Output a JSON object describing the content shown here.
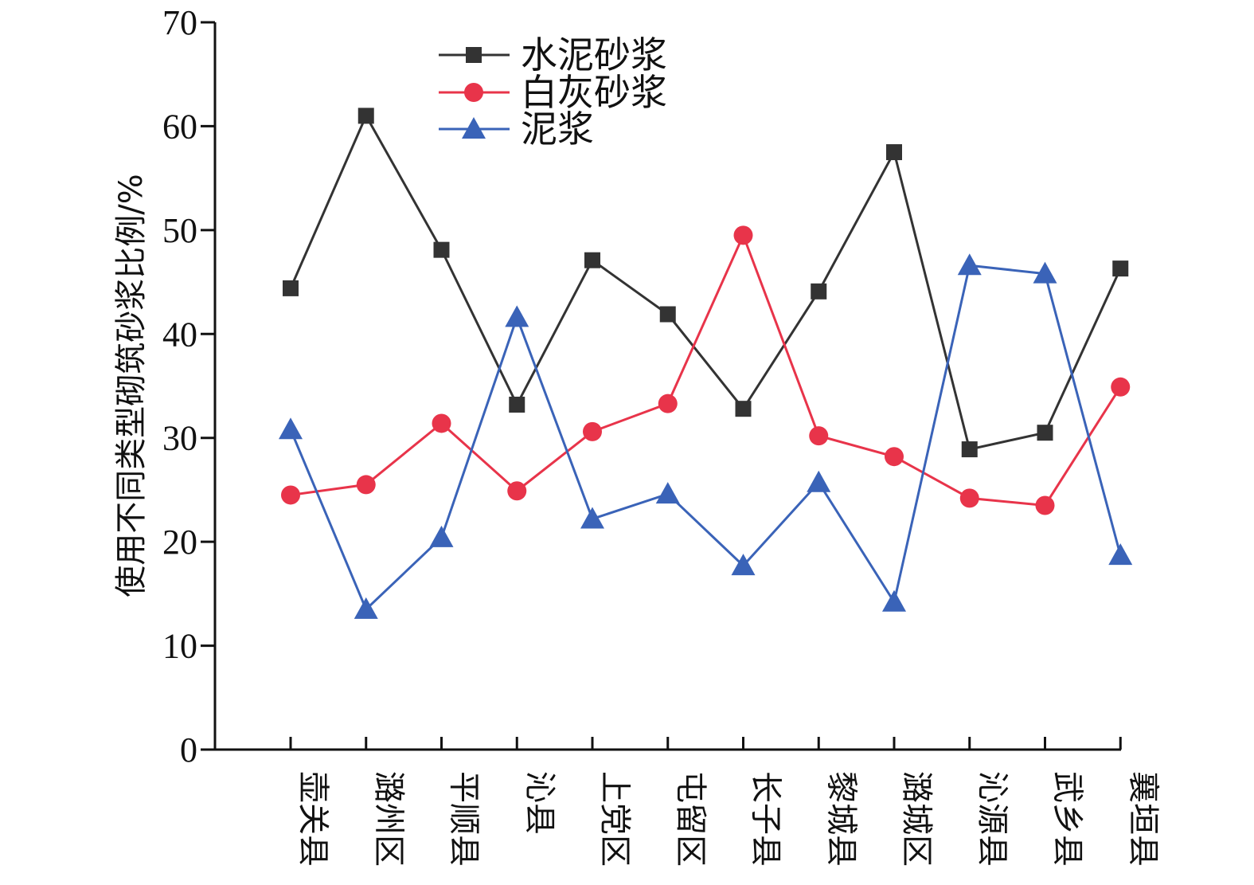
{
  "chart_data": {
    "type": "line",
    "title": "",
    "xlabel": "",
    "ylabel": "使用不同类型砌筑砂浆比例/%",
    "ylim": [
      0,
      70
    ],
    "yticks": [
      0,
      10,
      20,
      30,
      40,
      50,
      60,
      70
    ],
    "grid": false,
    "legend_position": "top-center",
    "categories": [
      "壶关县",
      "潞州区",
      "平顺县",
      "沁县",
      "上党区",
      "屯留区",
      "长子县",
      "黎城县",
      "潞城区",
      "沁源县",
      "武乡县",
      "襄垣县"
    ],
    "series": [
      {
        "name": "水泥砂浆",
        "color": "#333333",
        "marker": "square",
        "values": [
          44.4,
          61.0,
          48.1,
          33.2,
          47.1,
          41.9,
          32.8,
          44.1,
          57.5,
          28.9,
          30.5,
          46.3
        ]
      },
      {
        "name": "白灰砂浆",
        "color": "#e8344a",
        "marker": "circle",
        "values": [
          24.5,
          25.5,
          31.4,
          24.9,
          30.6,
          33.3,
          49.5,
          30.2,
          28.2,
          24.2,
          23.5,
          34.9
        ]
      },
      {
        "name": "泥浆",
        "color": "#3a63b8",
        "marker": "triangle",
        "values": [
          30.8,
          13.5,
          20.4,
          41.6,
          22.2,
          24.6,
          17.7,
          25.7,
          14.2,
          46.6,
          45.8,
          18.7
        ]
      }
    ]
  }
}
